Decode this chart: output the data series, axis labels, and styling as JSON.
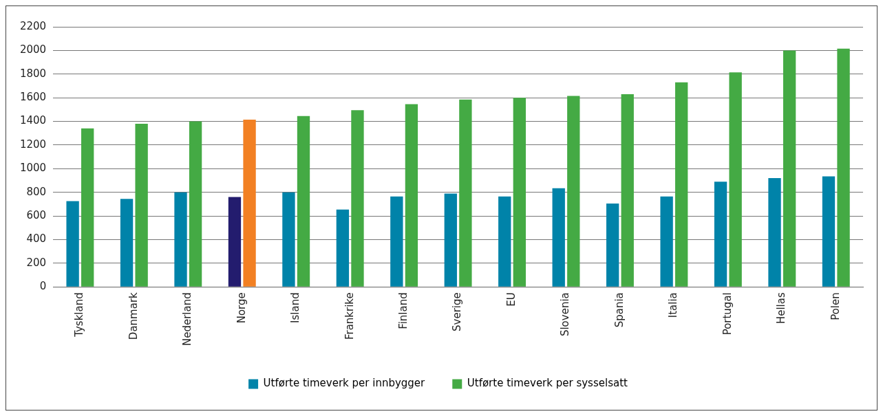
{
  "chart_data": {
    "type": "bar",
    "categories": [
      "Tyskland",
      "Danmark",
      "Nederland",
      "Norge",
      "Island",
      "Frankrike",
      "Finland",
      "Sverige",
      "EU",
      "Slovenia",
      "Spania",
      "Italia",
      "Portugal",
      "Hellas",
      "Polen"
    ],
    "series": [
      {
        "name": "Utførte timeverk per innbygger",
        "color": "#0083a9",
        "colors": [
          "#0083a9",
          "#0083a9",
          "#0083a9",
          "#231c6e",
          "#0083a9",
          "#0083a9",
          "#0083a9",
          "#0083a9",
          "#0083a9",
          "#0083a9",
          "#0083a9",
          "#0083a9",
          "#0083a9",
          "#0083a9",
          "#0083a9"
        ],
        "values": [
          725,
          745,
          800,
          760,
          800,
          655,
          765,
          790,
          765,
          835,
          705,
          765,
          890,
          920,
          935
        ]
      },
      {
        "name": "Utførte timeverk per sysselsatt",
        "color": "#44aa44",
        "colors": [
          "#44aa44",
          "#44aa44",
          "#44aa44",
          "#f28023",
          "#44aa44",
          "#44aa44",
          "#44aa44",
          "#44aa44",
          "#44aa44",
          "#44aa44",
          "#44aa44",
          "#44aa44",
          "#44aa44",
          "#44aa44",
          "#44aa44"
        ],
        "values": [
          1340,
          1380,
          1400,
          1415,
          1445,
          1495,
          1545,
          1585,
          1600,
          1615,
          1630,
          1730,
          1815,
          2000,
          2015
        ]
      }
    ],
    "ylim": [
      0,
      2200
    ],
    "yticks": [
      0,
      200,
      400,
      600,
      800,
      1000,
      1200,
      1400,
      1600,
      1800,
      2000,
      2200
    ],
    "grid": "y",
    "legend": "bottom"
  }
}
